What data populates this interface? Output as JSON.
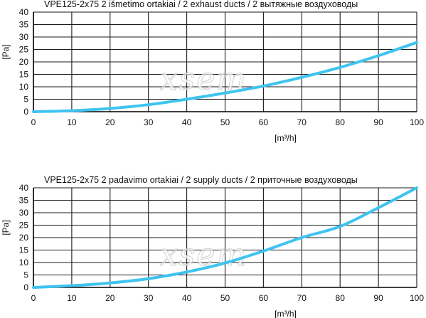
{
  "chart_data": [
    {
      "type": "line",
      "title": "VPE125-2x75 2 išmetimo ortakiai / 2 exhaust ducts / 2 вытяжные воздуховоды",
      "xlabel": "[m³/h]",
      "ylabel": "[Pa]",
      "xlim": [
        0,
        100
      ],
      "ylim": [
        0,
        40
      ],
      "xticks": [
        "0",
        "10",
        "20",
        "30",
        "40",
        "50",
        "60",
        "70",
        "80",
        "90",
        "100"
      ],
      "yticks": [
        "0",
        "5",
        "10",
        "15",
        "20",
        "25",
        "30",
        "35",
        "40"
      ],
      "grid": true,
      "line_color": "#3fc4ef",
      "x": [
        0,
        10,
        20,
        30,
        40,
        50,
        60,
        70,
        80,
        90,
        100
      ],
      "y": [
        0,
        0.4,
        1.3,
        2.8,
        5.0,
        7.5,
        10.3,
        13.8,
        17.8,
        22.5,
        27.8
      ]
    },
    {
      "type": "line",
      "title": "VPE125-2x75 2 padavimo ortakiai / 2  supply  ducts / 2 приточные воздуховоды",
      "xlabel": "[m³/h]",
      "ylabel": "[Pa]",
      "xlim": [
        0,
        100
      ],
      "ylim": [
        0,
        40
      ],
      "xticks": [
        "0",
        "10",
        "20",
        "30",
        "40",
        "50",
        "60",
        "70",
        "80",
        "90",
        "100"
      ],
      "yticks": [
        "0",
        "5",
        "10",
        "15",
        "20",
        "25",
        "30",
        "35",
        "40"
      ],
      "grid": true,
      "line_color": "#3fc4ef",
      "x": [
        0,
        10,
        20,
        30,
        40,
        50,
        60,
        70,
        80,
        90,
        100
      ],
      "y": [
        0,
        0.7,
        1.8,
        3.5,
        6.2,
        9.8,
        14.6,
        20.0,
        24.5,
        32.0,
        40.0
      ]
    }
  ],
  "watermark": "xsem"
}
